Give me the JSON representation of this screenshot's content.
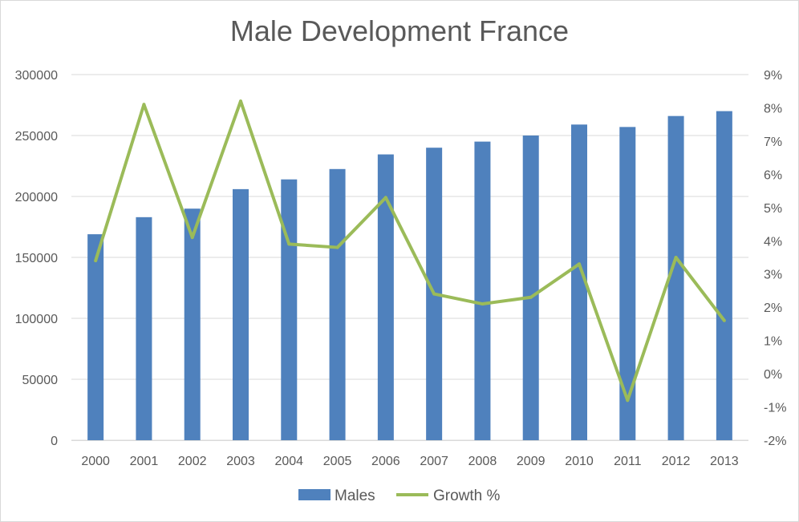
{
  "chart_data": {
    "type": "bar",
    "title": "Male Development France",
    "categories": [
      "2000",
      "2001",
      "2002",
      "2003",
      "2004",
      "2005",
      "2006",
      "2007",
      "2008",
      "2009",
      "2010",
      "2011",
      "2012",
      "2013"
    ],
    "series": [
      {
        "name": "Males",
        "type": "bar",
        "axis": "left",
        "color": "#4f81bd",
        "values": [
          169000,
          183000,
          190000,
          206000,
          214000,
          222500,
          234500,
          240000,
          245000,
          250000,
          259000,
          257000,
          266000,
          270000
        ]
      },
      {
        "name": "Growth %",
        "type": "line",
        "axis": "right",
        "color": "#9bbb59",
        "values": [
          3.4,
          8.1,
          4.1,
          8.2,
          3.9,
          3.8,
          5.3,
          2.4,
          2.1,
          2.3,
          3.3,
          -0.8,
          3.5,
          1.6
        ]
      }
    ],
    "y_left": {
      "min": 0,
      "max": 300000,
      "ticks": [
        "0",
        "50000",
        "100000",
        "150000",
        "200000",
        "250000",
        "300000"
      ]
    },
    "y_right": {
      "min": -2,
      "max": 9,
      "ticks": [
        "-2%",
        "-1%",
        "0%",
        "1%",
        "2%",
        "3%",
        "4%",
        "5%",
        "6%",
        "7%",
        "8%",
        "9%"
      ]
    },
    "grid": true,
    "legend_position": "bottom"
  }
}
